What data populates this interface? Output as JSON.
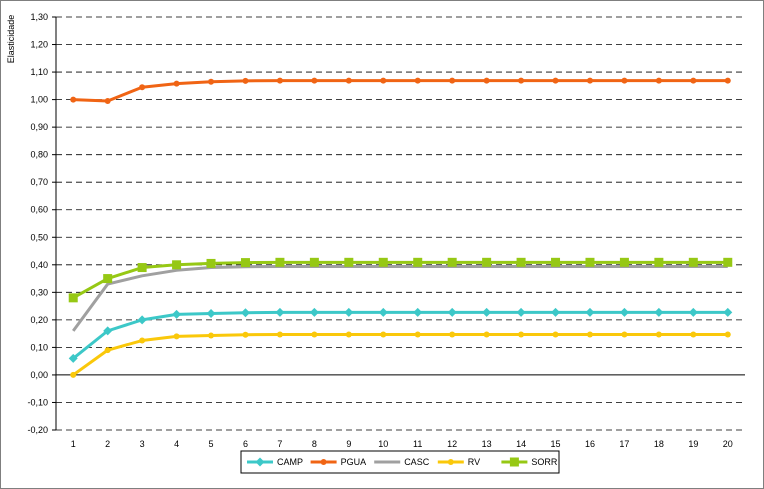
{
  "chart_data": {
    "type": "line",
    "title": "",
    "xlabel": "",
    "ylabel": "Elasticidade",
    "x": [
      1,
      2,
      3,
      4,
      5,
      6,
      7,
      8,
      9,
      10,
      11,
      12,
      13,
      14,
      15,
      16,
      17,
      18,
      19,
      20
    ],
    "ylim": [
      -0.2,
      1.3
    ],
    "y_step": 0.1,
    "y_tick_labels": [
      "-0,20",
      "-0,10",
      "0,00",
      "0,10",
      "0,20",
      "0,30",
      "0,40",
      "0,50",
      "0,60",
      "0,70",
      "0,80",
      "0,90",
      "1,00",
      "1,10",
      "1,20",
      "1,30"
    ],
    "grid": "dashed horizontal",
    "legend_position": "bottom",
    "series": [
      {
        "name": "CAMP",
        "color": "#3cc8c8",
        "marker": "diamond",
        "values": [
          0.06,
          0.16,
          0.2,
          0.22,
          0.223,
          0.226,
          0.227,
          0.227,
          0.227,
          0.227,
          0.227,
          0.227,
          0.227,
          0.227,
          0.227,
          0.227,
          0.227,
          0.227,
          0.227,
          0.227
        ]
      },
      {
        "name": "PGUA",
        "color": "#f06414",
        "marker": "circle",
        "values": [
          1.0,
          0.995,
          1.045,
          1.058,
          1.065,
          1.068,
          1.069,
          1.069,
          1.069,
          1.069,
          1.069,
          1.069,
          1.069,
          1.069,
          1.069,
          1.069,
          1.069,
          1.069,
          1.069,
          1.069
        ]
      },
      {
        "name": "CASC",
        "color": "#a0a0a0",
        "marker": "none",
        "values": [
          0.16,
          0.33,
          0.36,
          0.38,
          0.39,
          0.393,
          0.394,
          0.394,
          0.394,
          0.394,
          0.394,
          0.394,
          0.394,
          0.394,
          0.394,
          0.394,
          0.394,
          0.394,
          0.394,
          0.394
        ]
      },
      {
        "name": "RV",
        "color": "#fac80a",
        "marker": "circle",
        "values": [
          0.0,
          0.09,
          0.125,
          0.14,
          0.143,
          0.146,
          0.147,
          0.147,
          0.147,
          0.147,
          0.147,
          0.147,
          0.147,
          0.147,
          0.147,
          0.147,
          0.147,
          0.147,
          0.147,
          0.147
        ]
      },
      {
        "name": "SORR",
        "color": "#96c814",
        "marker": "square",
        "values": [
          0.28,
          0.35,
          0.39,
          0.4,
          0.405,
          0.408,
          0.409,
          0.409,
          0.409,
          0.409,
          0.409,
          0.409,
          0.409,
          0.409,
          0.409,
          0.409,
          0.409,
          0.409,
          0.409,
          0.409
        ]
      }
    ]
  }
}
